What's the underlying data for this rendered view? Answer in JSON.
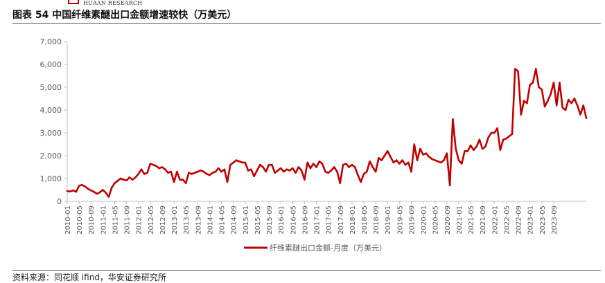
{
  "header": {
    "brand": "HUAAN RESEARCH",
    "title": "图表 54 中国纤维素醚出口金额增速较快（万美元）"
  },
  "footer": {
    "source": "资料来源：同花顺 ifind，华安证券研究所"
  },
  "colors": {
    "series": "#c00000",
    "axis": "#bfbfbf",
    "text": "#595959"
  },
  "chart_data": {
    "type": "line",
    "title": "",
    "xlabel": "",
    "ylabel": "",
    "ylim": [
      0,
      7000
    ],
    "y_ticks": [
      "0",
      "1,000",
      "2,000",
      "3,000",
      "4,000",
      "5,000",
      "6,000",
      "7,000"
    ],
    "x_tick_labels": [
      "2010-01",
      "2010-05",
      "2010-09",
      "2011-01",
      "2011-05",
      "2011-09",
      "2012-01",
      "2012-05",
      "2012-09",
      "2013-01",
      "2013-05",
      "2013-09",
      "2014-01",
      "2014-05",
      "2014-09",
      "2015-01",
      "2015-05",
      "2015-09",
      "2016-01",
      "2016-05",
      "2016-09",
      "2017-01",
      "2017-05",
      "2017-09",
      "2018-01",
      "2018-05",
      "2018-09",
      "2019-01",
      "2019-05",
      "2019-09",
      "2020-01",
      "2020-05",
      "2020-09",
      "2021-01",
      "2021-05",
      "2021-09",
      "2022-01",
      "2022-05",
      "2022-09",
      "2023-01",
      "2023-05",
      "2023-09"
    ],
    "grid": false,
    "legend": "bottom-center",
    "series": [
      {
        "name": "纤维素醚出口金额-月度（万美元）",
        "start": "2010-01",
        "frequency": "monthly",
        "values": [
          450,
          430,
          480,
          420,
          680,
          720,
          650,
          550,
          480,
          420,
          330,
          400,
          500,
          380,
          200,
          600,
          800,
          900,
          1000,
          950,
          920,
          1050,
          950,
          1050,
          1200,
          1400,
          1200,
          1250,
          1650,
          1600,
          1550,
          1450,
          1500,
          1400,
          1250,
          1300,
          850,
          1300,
          950,
          950,
          800,
          1250,
          1200,
          1250,
          1300,
          1350,
          1300,
          1200,
          1150,
          1250,
          1300,
          1450,
          1300,
          1400,
          850,
          1600,
          1700,
          1800,
          1750,
          1700,
          1700,
          1350,
          1400,
          1100,
          1350,
          1600,
          1500,
          1300,
          1600,
          1600,
          1250,
          1350,
          1450,
          1300,
          1400,
          1350,
          1450,
          1250,
          1500,
          1350,
          950,
          1700,
          1450,
          1650,
          1500,
          1750,
          1650,
          1300,
          1250,
          1350,
          1500,
          1300,
          800,
          1600,
          1650,
          1500,
          1600,
          1500,
          1150,
          850,
          1200,
          1300,
          1750,
          1500,
          1300,
          1900,
          1800,
          2000,
          2200,
          1950,
          1700,
          1800,
          1650,
          1800,
          1600,
          1700,
          1300,
          2500,
          1800,
          2300,
          2050,
          2100,
          1950,
          1850,
          1800,
          1750,
          1700,
          1800,
          2100,
          700,
          3600,
          2300,
          1800,
          1650,
          2200,
          2200,
          2450,
          2250,
          2400,
          2700,
          2300,
          2400,
          2800,
          3000,
          3000,
          3200,
          2250,
          2700,
          2750,
          2850,
          2950,
          5800,
          5700,
          3800,
          4400,
          4300,
          5100,
          5200,
          5800,
          5000,
          4900,
          4150,
          4400,
          4700,
          5200,
          4200,
          5200,
          4100,
          4000,
          4450,
          4300,
          4500,
          4200,
          3800,
          4200,
          3650
        ]
      }
    ]
  }
}
